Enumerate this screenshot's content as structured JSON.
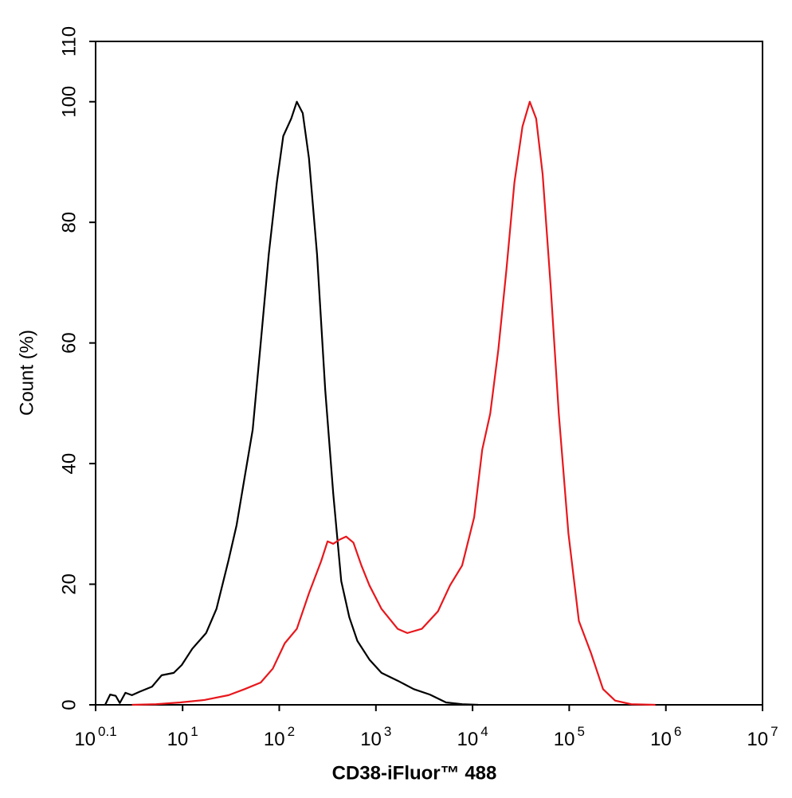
{
  "chart_data": {
    "type": "line",
    "x_label": "CD38-iFluor™ 488",
    "y_label": "Count  (%)",
    "xscale": "log",
    "xlim": [
      1.2589,
      10000000
    ],
    "xticks": [
      {
        "value": 1.2589,
        "label": "10",
        "sup": "0.1"
      },
      {
        "value": 10,
        "label": "10",
        "sup": "1"
      },
      {
        "value": 100,
        "label": "10",
        "sup": "2"
      },
      {
        "value": 1000,
        "label": "10",
        "sup": "3"
      },
      {
        "value": 10000,
        "label": "10",
        "sup": "4"
      },
      {
        "value": 100000,
        "label": "10",
        "sup": "5"
      },
      {
        "value": 1000000,
        "label": "10",
        "sup": "6"
      },
      {
        "value": 10000000,
        "label": "10",
        "sup": "7"
      }
    ],
    "ylim": [
      0,
      110
    ],
    "yticks": [
      0,
      20,
      40,
      60,
      80,
      100,
      110
    ],
    "series": [
      {
        "color": "#000000",
        "x": [
          1.58,
          1.78,
          2.03,
          2.24,
          2.56,
          2.99,
          3.62,
          4.82,
          6.07,
          8.1,
          9.8,
          12.6,
          17.5,
          22.4,
          29.9,
          36.2,
          43.8,
          53.1,
          64.3,
          77.9,
          94.4,
          110,
          133,
          152,
          175,
          203,
          246,
          299,
          362,
          438,
          531,
          643,
          857,
          1143,
          1679,
          2466,
          3617,
          5309,
          7798,
          11430
        ],
        "values": [
          0,
          1.7,
          1.5,
          0.3,
          2,
          1.6,
          2.2,
          3,
          4.9,
          5.3,
          6.6,
          9.3,
          11.9,
          15.9,
          24,
          29.8,
          37.7,
          45.6,
          60,
          74.7,
          86.6,
          94.3,
          97.2,
          100,
          98.1,
          90.6,
          74.7,
          52.2,
          35,
          20.5,
          14.5,
          10.6,
          7.5,
          5.3,
          4,
          2.6,
          1.7,
          0.4,
          0.1,
          0
        ]
      },
      {
        "color": "#e8171c",
        "x": [
          2.99,
          5.31,
          9.44,
          16.8,
          29.9,
          43.8,
          64.3,
          85.7,
          114,
          152,
          203,
          271,
          316,
          362,
          422,
          492,
          585,
          708,
          857,
          1143,
          1679,
          2113,
          2985,
          4385,
          5843,
          7798,
          10390,
          12590,
          15240,
          18480,
          22390,
          27100,
          32850,
          39080,
          45500,
          53090,
          64280,
          77980,
          98160,
          125900,
          167900,
          223900,
          298500,
          438500,
          779800
        ],
        "values": [
          0,
          0.1,
          0.4,
          0.8,
          1.6,
          2.6,
          3.7,
          6,
          10.2,
          12.6,
          18.5,
          23.8,
          27.1,
          26.7,
          27.4,
          27.9,
          26.9,
          23.1,
          19.8,
          15.9,
          12.6,
          11.9,
          12.6,
          15.5,
          19.8,
          23.1,
          31.1,
          42.3,
          48.3,
          58.9,
          72.1,
          86.6,
          95.9,
          100,
          97.2,
          88,
          69.4,
          48.3,
          28.4,
          13.9,
          8.6,
          2.6,
          0.7,
          0.1,
          0
        ]
      }
    ]
  }
}
